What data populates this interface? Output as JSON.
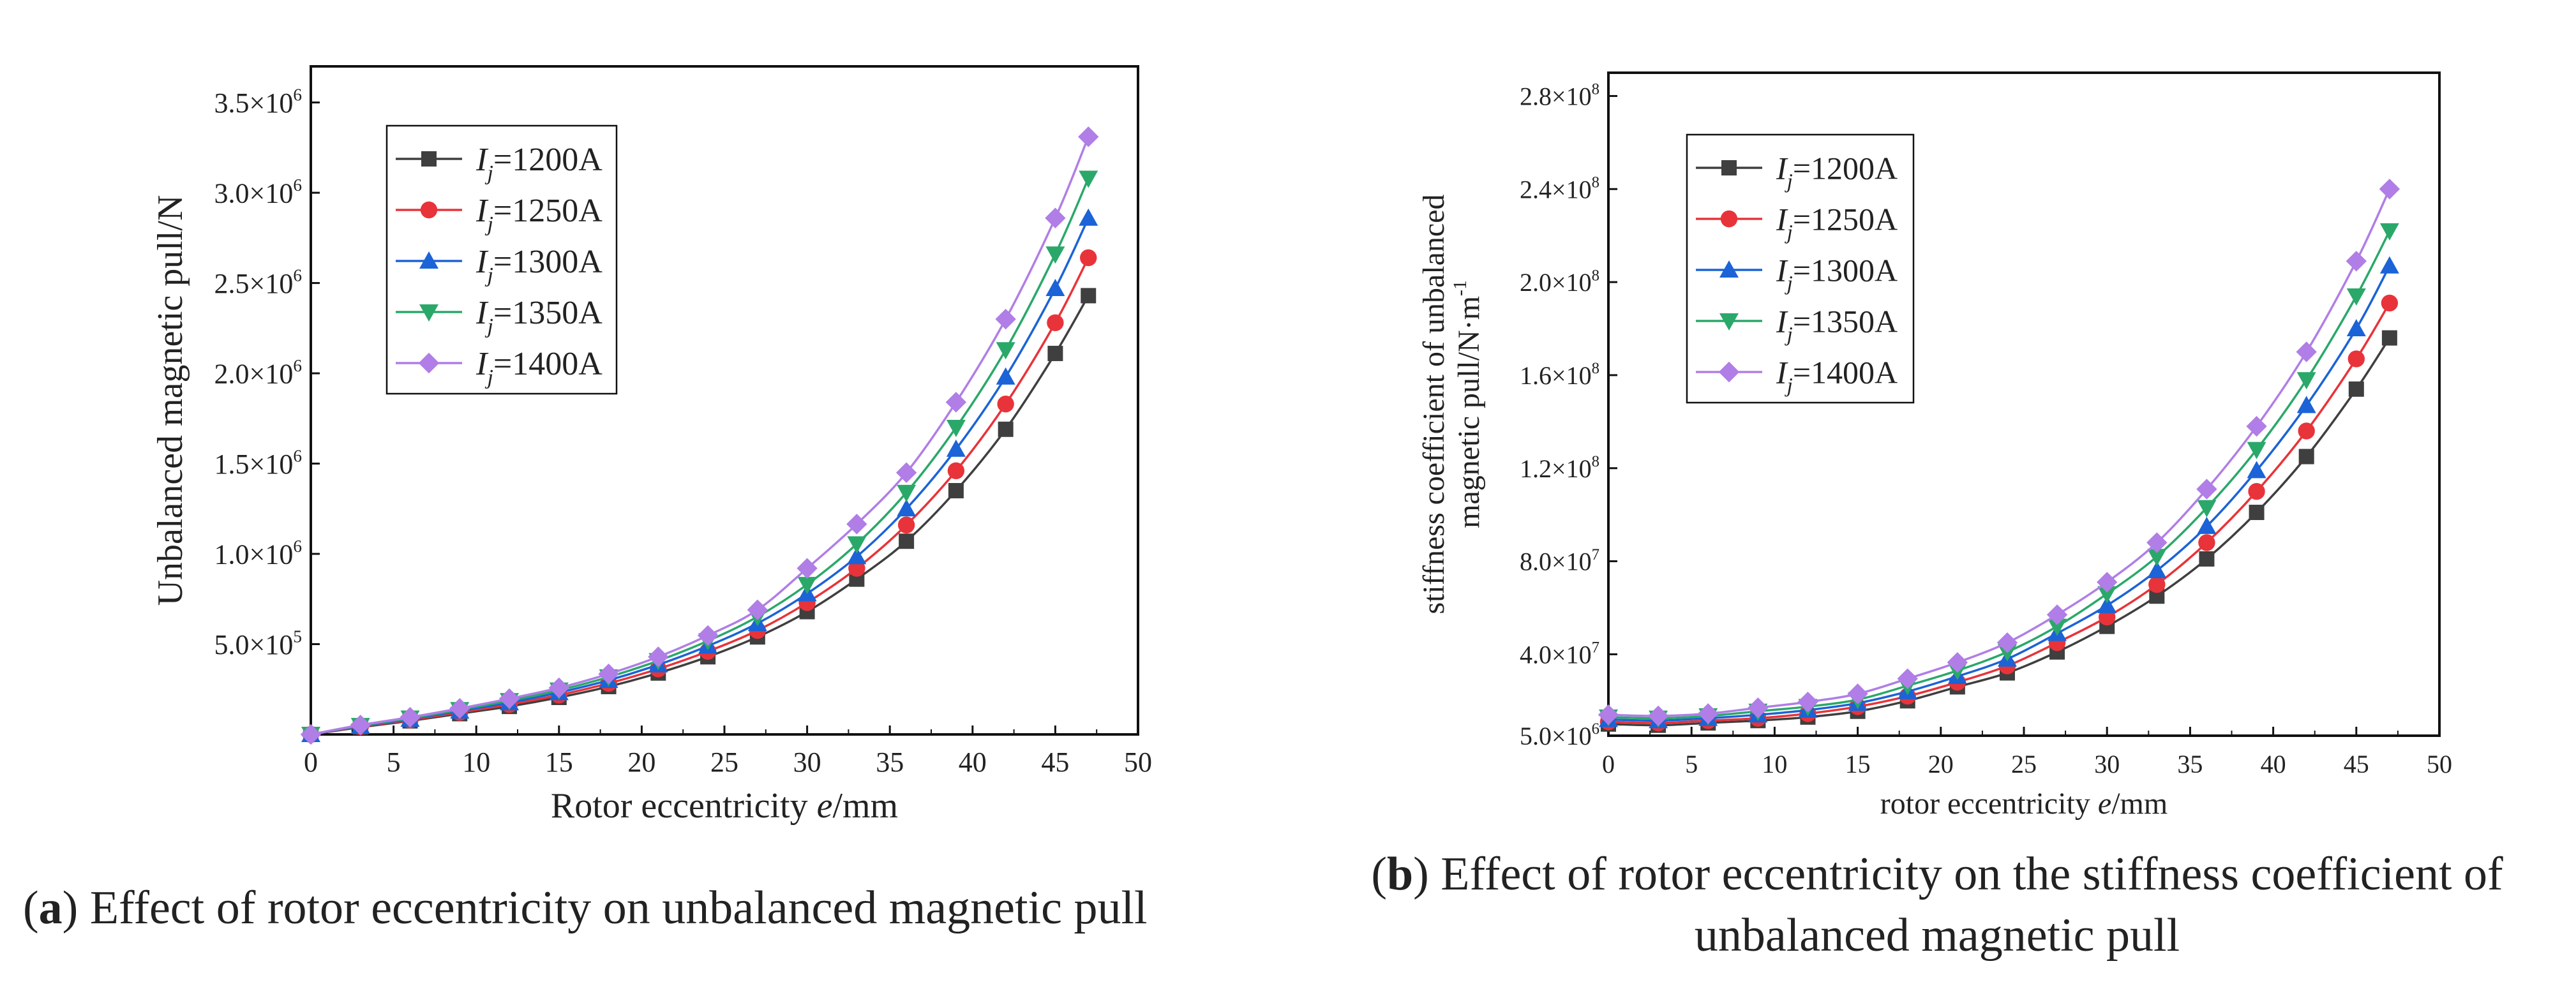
{
  "colors": {
    "Ij=1200A": "#3f3f3f",
    "Ij=1250A": "#e8333a",
    "Ij=1300A": "#1b63d6",
    "Ij=1350A": "#2aa86a",
    "Ij=1400A": "#b07ee6"
  },
  "markers": {
    "Ij=1200A": "square",
    "Ij=1250A": "circle",
    "Ij=1300A": "triangle-up",
    "Ij=1350A": "triangle-down",
    "Ij=1400A": "diamond"
  },
  "captions": {
    "a_letter": "a",
    "a_text": " Effect of rotor eccentricity on unbalanced magnetic pull",
    "b_letter": "b",
    "b_text": " Effect of rotor eccentricity on the stiffness coefficient of unbalanced magnetic pull"
  },
  "chart_data": [
    {
      "type": "line",
      "title": "",
      "xlabel": "Rotor eccentricity e/mm",
      "ylabel": "Unbalanced magnetic pull/N",
      "xlim": [
        0,
        50
      ],
      "ylim": [
        0,
        3700000.0
      ],
      "x_ticks": [
        0,
        5,
        10,
        15,
        20,
        25,
        30,
        35,
        40,
        45,
        50
      ],
      "y_ticks": [
        {
          "value": 500000,
          "mant": "5.0",
          "exp": "5"
        },
        {
          "value": 1000000,
          "mant": "1.0",
          "exp": "6"
        },
        {
          "value": 1500000,
          "mant": "1.5",
          "exp": "6"
        },
        {
          "value": 2000000,
          "mant": "2.0",
          "exp": "6"
        },
        {
          "value": 2500000,
          "mant": "2.5",
          "exp": "6"
        },
        {
          "value": 3000000,
          "mant": "3.0",
          "exp": "6"
        },
        {
          "value": 3500000,
          "mant": "3.5",
          "exp": "6"
        }
      ],
      "legend_position": "top-left",
      "grid": false,
      "x": [
        0,
        3,
        6,
        9,
        12,
        15,
        18,
        21,
        24,
        27,
        30,
        33,
        36,
        39,
        42,
        45,
        47
      ],
      "series": [
        {
          "name": "Ij=1200A",
          "label_main": "I",
          "label_sub": "j",
          "label_rest": "=1200A",
          "values": [
            0,
            40000,
            75000,
            115000,
            155000,
            205000,
            265000,
            340000,
            430000,
            540000,
            680000,
            860000,
            1070000,
            1350000,
            1690000,
            2110000,
            2430000
          ]
        },
        {
          "name": "Ij=1250A",
          "label_main": "I",
          "label_sub": "j",
          "label_rest": "=1250A",
          "values": [
            0,
            43000,
            80000,
            122000,
            166000,
            218000,
            283000,
            363000,
            460000,
            576000,
            730000,
            920000,
            1160000,
            1460000,
            1830000,
            2280000,
            2640000
          ]
        },
        {
          "name": "Ij=1300A",
          "label_main": "I",
          "label_sub": "j",
          "label_rest": "=1300A",
          "values": [
            0,
            46000,
            85000,
            130000,
            176000,
            232000,
            300000,
            386000,
            490000,
            615000,
            780000,
            985000,
            1250000,
            1580000,
            1980000,
            2470000,
            2860000
          ]
        },
        {
          "name": "Ij=1350A",
          "label_main": "I",
          "label_sub": "j",
          "label_rest": "=1350A",
          "values": [
            0,
            49000,
            90000,
            137000,
            187000,
            245000,
            318000,
            408000,
            518000,
            652000,
            830000,
            1055000,
            1340000,
            1700000,
            2130000,
            2660000,
            3080000
          ]
        },
        {
          "name": "Ij=1400A",
          "label_main": "I",
          "label_sub": "j",
          "label_rest": "=1400A",
          "values": [
            0,
            52000,
            95000,
            144000,
            198000,
            258000,
            335000,
            430000,
            548000,
            690000,
            920000,
            1165000,
            1450000,
            1840000,
            2300000,
            2860000,
            3310000
          ]
        }
      ]
    },
    {
      "type": "line",
      "title": "",
      "xlabel": "rotor eccentricity e/mm",
      "ylabel": "stiffness coefficient of unbalanced magnetic pull/N·m-1",
      "ylabel_line1": "stiffness coefficient of unbalanced",
      "ylabel_line2": "magnetic pull/N·m",
      "ylabel_sup": "-1",
      "xlim": [
        0,
        50
      ],
      "ylim": [
        5000000,
        290000000.0
      ],
      "x_ticks": [
        0,
        5,
        10,
        15,
        20,
        25,
        30,
        35,
        40,
        45,
        50
      ],
      "y_ticks": [
        {
          "value": 5000000,
          "mant": "5.0",
          "exp": "6"
        },
        {
          "value": 40000000,
          "mant": "4.0",
          "exp": "7"
        },
        {
          "value": 80000000,
          "mant": "8.0",
          "exp": "7"
        },
        {
          "value": 120000000,
          "mant": "1.2",
          "exp": "8"
        },
        {
          "value": 160000000,
          "mant": "1.6",
          "exp": "8"
        },
        {
          "value": 200000000,
          "mant": "2.0",
          "exp": "8"
        },
        {
          "value": 240000000,
          "mant": "2.4",
          "exp": "8"
        },
        {
          "value": 280000000,
          "mant": "2.8",
          "exp": "8"
        }
      ],
      "legend_position": "top-left",
      "grid": false,
      "x": [
        0,
        3,
        6,
        9,
        12,
        15,
        18,
        21,
        24,
        27,
        30,
        33,
        36,
        39,
        42,
        45,
        47
      ],
      "series": [
        {
          "name": "Ij=1200A",
          "label_main": "I",
          "label_sub": "j",
          "label_rest": "=1200A",
          "values": [
            10000000,
            9500000,
            10500000,
            11500000,
            13000000,
            15500000,
            20000000,
            26000000,
            32000000,
            41000000,
            52000000,
            65000000,
            81000000,
            101000000,
            125000000,
            154000000,
            176000000
          ]
        },
        {
          "name": "Ij=1250A",
          "label_main": "I",
          "label_sub": "j",
          "label_rest": "=1250A",
          "values": [
            11000000,
            10500000,
            11500000,
            12500000,
            14500000,
            17500000,
            22000000,
            28000000,
            35000000,
            45000000,
            56000000,
            70000000,
            88000000,
            110000000,
            136000000,
            167000000,
            191000000
          ]
        },
        {
          "name": "Ij=1300A",
          "label_main": "I",
          "label_sub": "j",
          "label_rest": "=1300A",
          "values": [
            12000000,
            11500000,
            12500000,
            14000000,
            16000000,
            19000000,
            24000000,
            30500000,
            38000000,
            49000000,
            61000000,
            76000000,
            95000000,
            119000000,
            147000000,
            180000000,
            207000000
          ]
        },
        {
          "name": "Ij=1350A",
          "label_main": "I",
          "label_sub": "j",
          "label_rest": "=1350A",
          "values": [
            13000000,
            12500000,
            13500000,
            15500000,
            17500000,
            20500000,
            26500000,
            33000000,
            41000000,
            52000000,
            66000000,
            82000000,
            103000000,
            128000000,
            158000000,
            194000000,
            222000000
          ]
        },
        {
          "name": "Ij=1400A",
          "label_main": "I",
          "label_sub": "j",
          "label_rest": "=1400A",
          "values": [
            14000000,
            13500000,
            14500000,
            17000000,
            19500000,
            23000000,
            29500000,
            36500000,
            45000000,
            57000000,
            71000000,
            88000000,
            111000000,
            138000000,
            170000000,
            209000000,
            240000000
          ]
        }
      ]
    }
  ]
}
